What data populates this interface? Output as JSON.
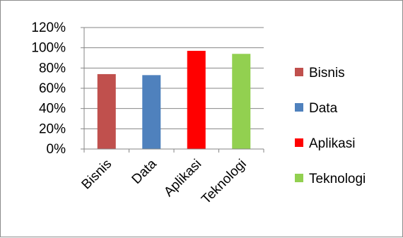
{
  "chart_data": {
    "type": "bar",
    "categories": [
      "Bisnis",
      "Data",
      "Aplikasi",
      "Teknologi"
    ],
    "values": [
      74,
      73,
      97,
      94
    ],
    "colors": [
      "#c0504d",
      "#4f81bd",
      "#ff0000",
      "#92d050"
    ],
    "yticks": [
      "0%",
      "20%",
      "40%",
      "60%",
      "80%",
      "100%",
      "120%"
    ],
    "ylim": [
      0,
      120
    ],
    "grid": true,
    "legend": {
      "placement": "right",
      "items": [
        {
          "label": "Bisnis",
          "color": "#c0504d"
        },
        {
          "label": "Data",
          "color": "#4f81bd"
        },
        {
          "label": "Aplikasi",
          "color": "#ff0000"
        },
        {
          "label": "Teknologi",
          "color": "#92d050"
        }
      ]
    }
  }
}
